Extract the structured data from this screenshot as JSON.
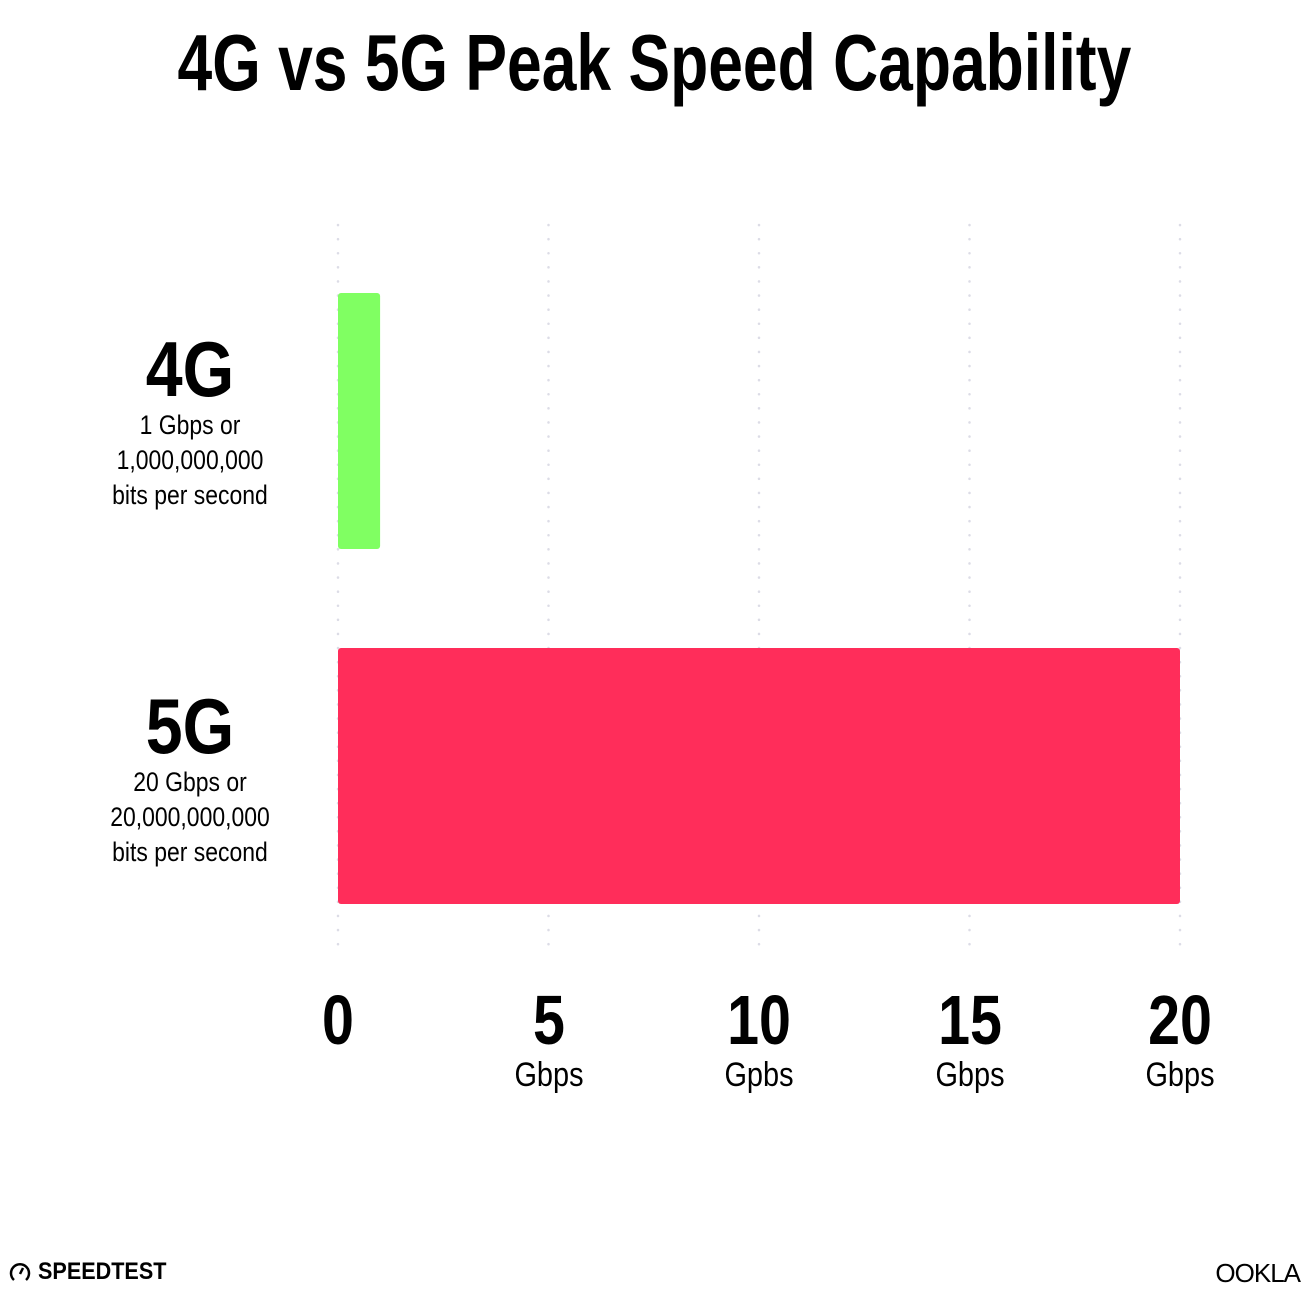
{
  "chart_data": {
    "type": "bar",
    "orientation": "horizontal",
    "title": "4G vs 5G Peak Speed Capability",
    "categories": [
      "4G",
      "5G"
    ],
    "category_sublabels": [
      "1 Gbps or\n1,000,000,000\nbits per second",
      "20 Gbps or\n20,000,000,000\nbits per second"
    ],
    "values": [
      1,
      20
    ],
    "colors": [
      "#80ff62",
      "#ff2d5a"
    ],
    "xlim": [
      0,
      20
    ],
    "grid": true,
    "grid_style": "dotted",
    "xticks": [
      {
        "value": 0,
        "label": "0",
        "unit": ""
      },
      {
        "value": 5,
        "label": "5",
        "unit": "Gbps"
      },
      {
        "value": 10,
        "label": "10",
        "unit": "Gpbs"
      },
      {
        "value": 15,
        "label": "15",
        "unit": "Gbps"
      },
      {
        "value": 20,
        "label": "20",
        "unit": "Gbps"
      }
    ]
  },
  "branding": {
    "left": "SPEEDTEST",
    "right": "OOKLA"
  }
}
